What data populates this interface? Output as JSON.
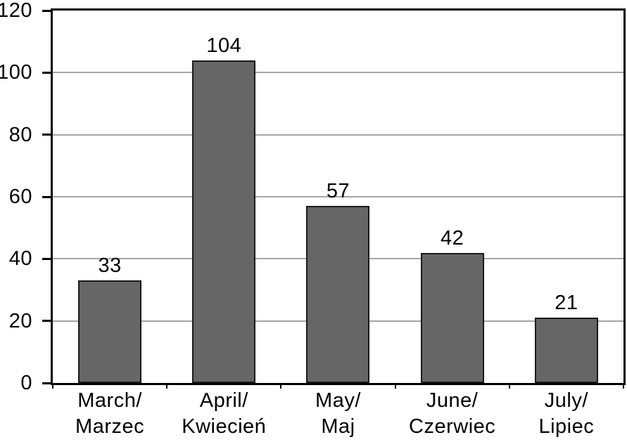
{
  "chart_data": {
    "type": "bar",
    "title": "",
    "xlabel": "",
    "ylabel": "",
    "categories": [
      "March/Marzec",
      "April/Kwiecień",
      "May/Maj",
      "June/Czerwiec",
      "July/Lipiec"
    ],
    "category_lines": [
      [
        "March/",
        "Marzec"
      ],
      [
        "April/",
        "Kwiecień"
      ],
      [
        "May/",
        "Maj"
      ],
      [
        "June/",
        "Czerwiec"
      ],
      [
        "July/",
        "Lipiec"
      ]
    ],
    "values": [
      33,
      104,
      57,
      42,
      21
    ],
    "ylim": [
      0,
      120
    ],
    "yticks": [
      0,
      20,
      40,
      60,
      80,
      100,
      120
    ],
    "grid": true,
    "legend": false,
    "colors": {
      "bar_fill": "#666666",
      "bar_border": "#1a1a1a",
      "gridline": "#a6a6a6",
      "axis": "#000000",
      "text": "#000000",
      "background": "#ffffff"
    }
  }
}
